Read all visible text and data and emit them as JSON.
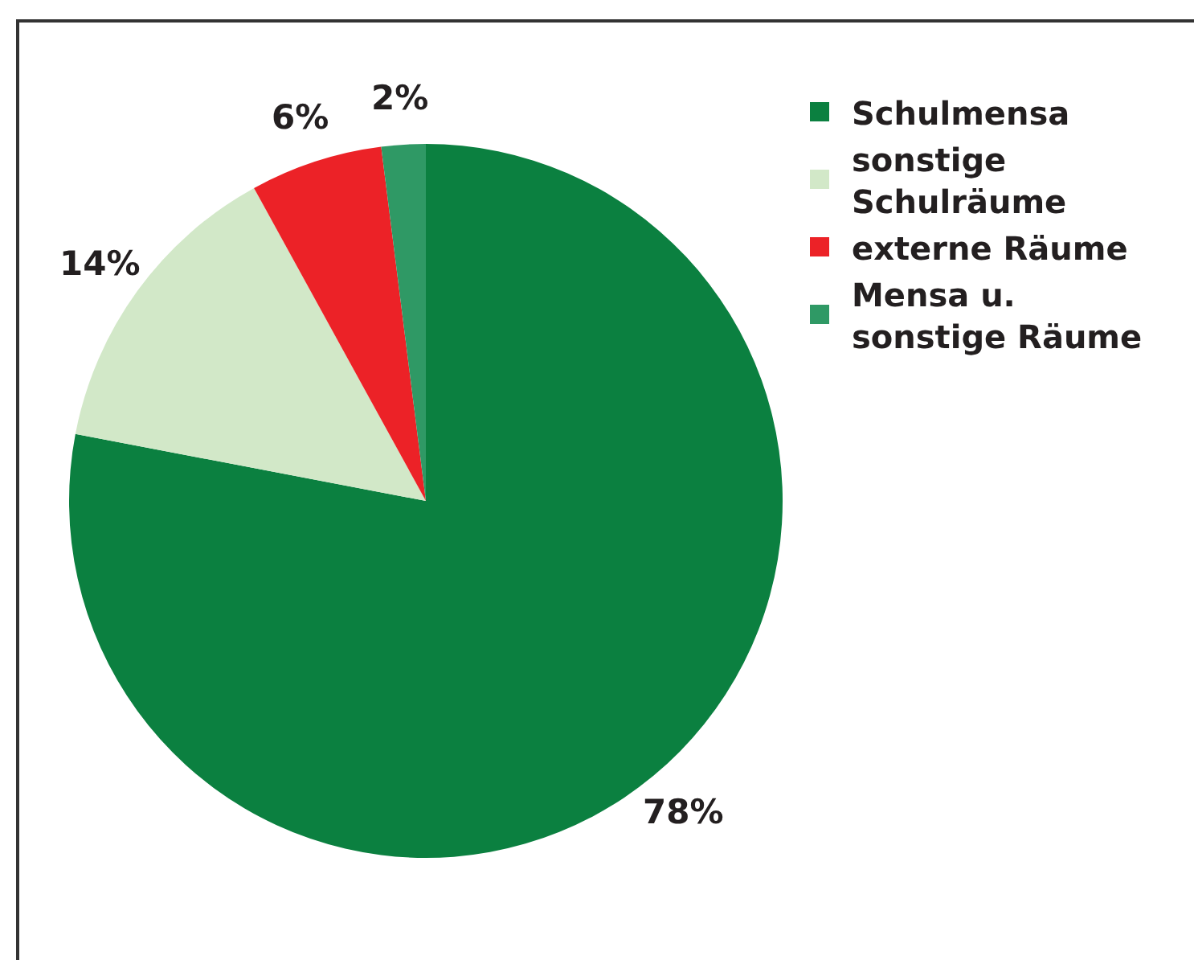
{
  "chart_data": {
    "type": "pie",
    "categories": [
      "Schulmensa",
      "sonstige Schulräume",
      "externe Räume",
      "Mensa u. sonstige Räume"
    ],
    "values": [
      78,
      14,
      6,
      2
    ],
    "value_labels": [
      "78%",
      "14%",
      "6%",
      "2%"
    ],
    "colors": [
      "#0b8040",
      "#d2e8c8",
      "#ec2227",
      "#2f9965"
    ],
    "legend": "top right"
  }
}
